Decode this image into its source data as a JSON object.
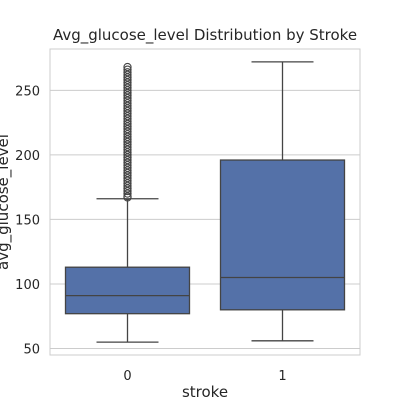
{
  "chart_data": {
    "type": "box",
    "title": "Avg_glucose_level Distribution by Stroke",
    "xlabel": "stroke",
    "ylabel": "avg_glucose_level",
    "categories": [
      "0",
      "1"
    ],
    "ylim": [
      45,
      282
    ],
    "yticks": [
      50,
      100,
      150,
      200,
      250
    ],
    "grid": "horizontal",
    "colors": {
      "box": "#5471a8",
      "edge": "#444444",
      "grid": "#cccccc",
      "frame": "#cccccc"
    },
    "series": [
      {
        "category": "0",
        "whisker_low": 55,
        "q1": 77,
        "median": 91,
        "q3": 113,
        "whisker_high": 166,
        "outliers": [
          167,
          168,
          170,
          172,
          174,
          176,
          178,
          180,
          182,
          184,
          186,
          188,
          190,
          192,
          194,
          196,
          198,
          200,
          202,
          204,
          206,
          208,
          210,
          212,
          214,
          216,
          218,
          220,
          222,
          224,
          226,
          228,
          230,
          232,
          234,
          236,
          238,
          240,
          242,
          244,
          246,
          248,
          250,
          252,
          254,
          256,
          258,
          260,
          262,
          264,
          266,
          268
        ]
      },
      {
        "category": "1",
        "whisker_low": 56,
        "q1": 80,
        "median": 105,
        "q3": 196,
        "whisker_high": 272,
        "outliers": []
      }
    ]
  }
}
